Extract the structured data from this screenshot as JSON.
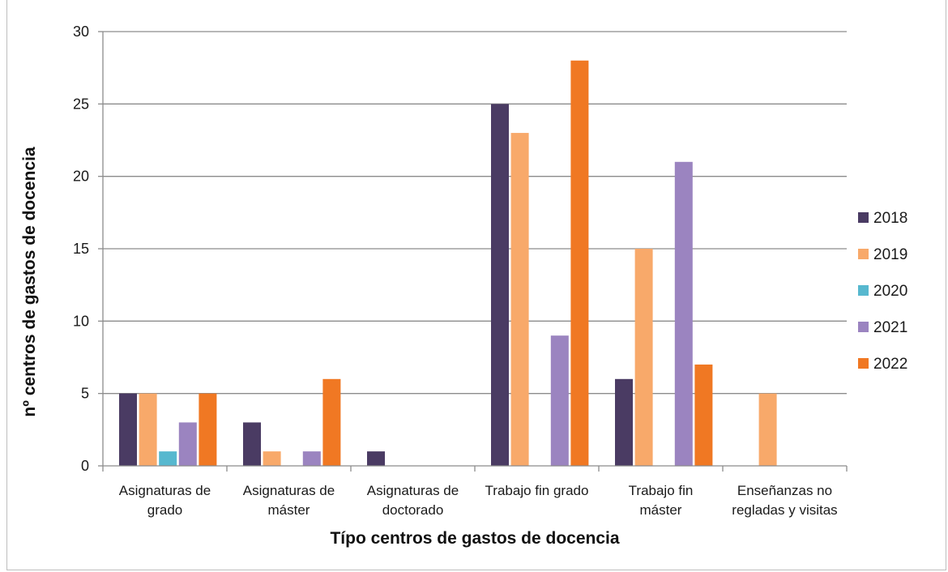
{
  "chart_data": {
    "type": "bar",
    "title": "",
    "xlabel": "Típo centros de gastos de docencia",
    "ylabel": "nº centros de gastos de docencia",
    "ylim": [
      0,
      30
    ],
    "yticks": [
      0,
      5,
      10,
      15,
      20,
      25,
      30
    ],
    "grid": true,
    "legend": "right",
    "categories": [
      [
        "Asignaturas de",
        "grado"
      ],
      [
        "Asignaturas de",
        "máster"
      ],
      [
        "Asignaturas de",
        "doctorado"
      ],
      [
        "Trabajo fin grado"
      ],
      [
        "Trabajo fin",
        "máster"
      ],
      [
        "Enseñanzas no",
        "regladas y visitas"
      ]
    ],
    "series": [
      {
        "name": "2018",
        "color": "#4a3b63",
        "values": [
          5,
          3,
          1,
          25,
          6,
          0
        ]
      },
      {
        "name": "2019",
        "color": "#f8a96a",
        "values": [
          5,
          1,
          0,
          23,
          15,
          5
        ]
      },
      {
        "name": "2020",
        "color": "#57b8cf",
        "values": [
          1,
          0,
          0,
          0,
          0,
          0
        ]
      },
      {
        "name": "2021",
        "color": "#9b84c0",
        "values": [
          3,
          1,
          0,
          9,
          21,
          0
        ]
      },
      {
        "name": "2022",
        "color": "#f07823",
        "values": [
          5,
          6,
          0,
          28,
          7,
          0
        ]
      }
    ]
  }
}
